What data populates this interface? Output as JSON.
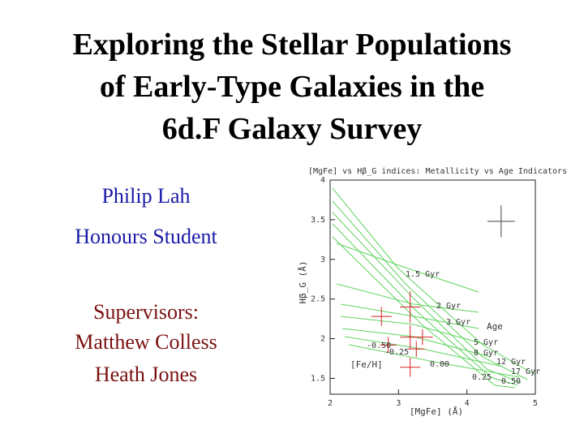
{
  "slide": {
    "title_lines": [
      "Exploring the Stellar Populations",
      "of Early-Type Galaxies in the",
      "6d.F Galaxy Survey"
    ],
    "author": "Philip Lah",
    "role": "Honours Student",
    "supervisors_heading": "Supervisors:",
    "supervisors": [
      "Matthew Colless",
      "Heath Jones"
    ]
  },
  "figure": {
    "title": "[MgFe] vs Hβ_G indices: Metallicity vs Age Indicators",
    "x_label": "[MgFe] (Å)",
    "y_label": "Hβ_G (Å)",
    "xlim": [
      2,
      5
    ],
    "ylim": [
      1.3,
      4
    ],
    "xticks": [
      2,
      3,
      4,
      5
    ],
    "yticks": [
      1.5,
      2,
      2.5,
      3,
      3.5,
      4
    ],
    "age_labels": [
      "1.5 Gyr",
      "2 Gyr",
      "3 Gyr",
      "5 Gyr",
      "8 Gyr",
      "12 Gyr",
      "17 Gyr",
      "Age"
    ],
    "metallicity_labels": [
      "-0.50",
      "-0.25",
      "0.00",
      "0.25",
      "0.50",
      "[Fe/H]"
    ],
    "points": {
      "x": [
        2.75,
        3.17,
        3.17,
        3.35,
        2.85,
        3.17,
        3.26
      ],
      "y": [
        2.28,
        2.4,
        2.02,
        2.02,
        1.92,
        1.64,
        1.87
      ],
      "xerr": [
        0.15,
        0.15,
        0.15,
        0.15,
        0.12,
        0.15,
        0.12
      ],
      "yerr": [
        0.12,
        0.2,
        0.15,
        0.1,
        0.1,
        0.12,
        0.1
      ]
    },
    "typical_error": {
      "x": 4.5,
      "y": 3.48,
      "xerr": 0.2,
      "yerr": 0.2
    }
  }
}
